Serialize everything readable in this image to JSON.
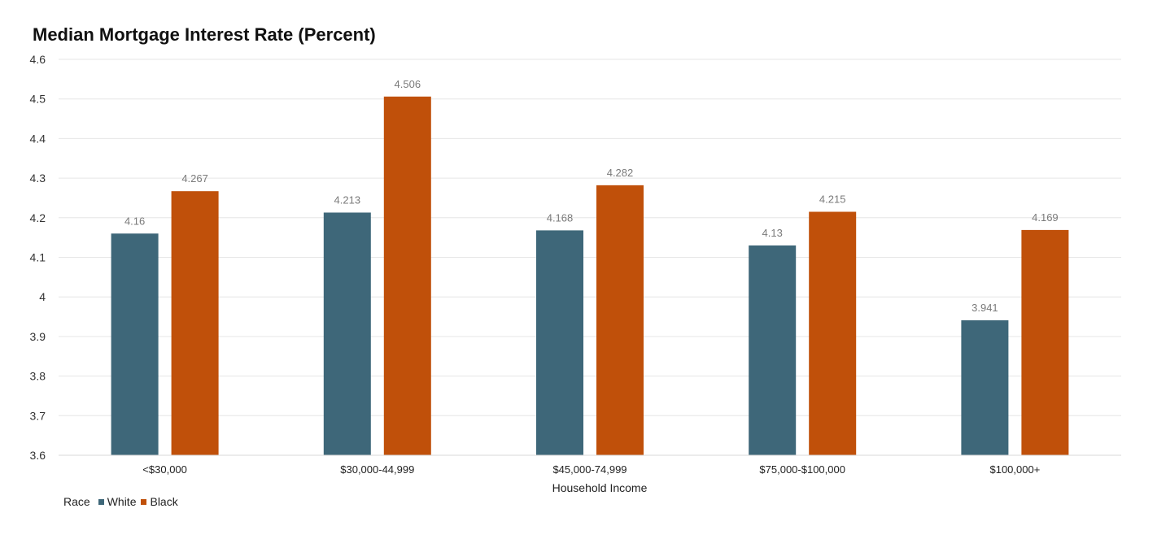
{
  "chart_data": {
    "type": "bar",
    "title": "Median Mortgage Interest Rate (Percent)",
    "xlabel": "Household Income",
    "ylabel": "",
    "ylim": [
      3.6,
      4.6
    ],
    "yticks": [
      "3.6",
      "3.7",
      "3.8",
      "3.9",
      "4",
      "4.1",
      "4.2",
      "4.3",
      "4.4",
      "4.5",
      "4.6"
    ],
    "grid": true,
    "legend_title": "Race",
    "legend_position": "bottom-left",
    "categories": [
      "<$30,000",
      "$30,000-44,999",
      "$45,000-74,999",
      "$75,000-$100,000",
      "$100,000+"
    ],
    "series": [
      {
        "name": "White",
        "color": "#3e6779",
        "values": [
          4.16,
          4.213,
          4.168,
          4.13,
          3.941
        ],
        "labels": [
          "4.16",
          "4.213",
          "4.168",
          "4.13",
          "3.941"
        ]
      },
      {
        "name": "Black",
        "color": "#c0500a",
        "values": [
          4.267,
          4.506,
          4.282,
          4.215,
          4.169
        ],
        "labels": [
          "4.267",
          "4.506",
          "4.282",
          "4.215",
          "4.169"
        ]
      }
    ]
  }
}
